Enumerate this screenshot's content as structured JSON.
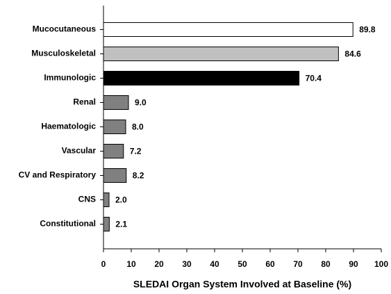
{
  "chart_data": {
    "type": "barh",
    "xlabel": "SLEDAI Organ System Involved at Baseline (%)",
    "categories": [
      "Mucocutaneous",
      "Musculoskeletal",
      "Immunologic",
      "Renal",
      "Haematologic",
      "Vascular",
      "CV and Respiratory",
      "CNS",
      "Constitutional"
    ],
    "values": [
      89.8,
      84.6,
      70.4,
      9.0,
      8.0,
      7.2,
      8.2,
      2.0,
      2.1
    ],
    "value_labels": [
      "89.8",
      "84.6",
      "70.4",
      "9.0",
      "8.0",
      "7.2",
      "8.2",
      "2.0",
      "2.1"
    ],
    "colors": [
      "#ffffff",
      "#c0c0c0",
      "#000000",
      "#808080",
      "#808080",
      "#808080",
      "#808080",
      "#808080",
      "#808080"
    ],
    "xlim": [
      0,
      100
    ],
    "xticks": [
      0,
      10,
      20,
      30,
      40,
      50,
      60,
      70,
      80,
      90,
      100
    ]
  }
}
